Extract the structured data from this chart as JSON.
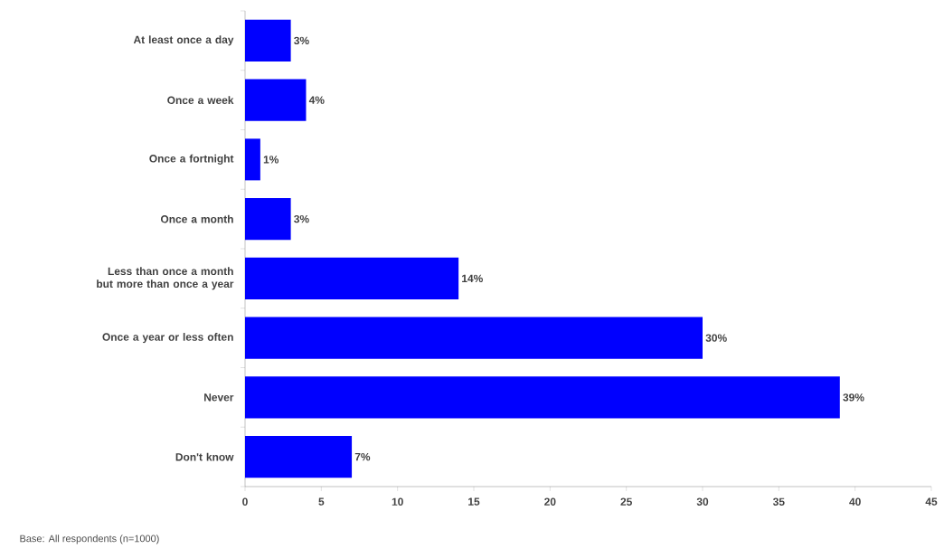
{
  "chart_data": {
    "type": "bar",
    "orientation": "horizontal",
    "categories": [
      "At least once a day",
      "Once a week",
      "Once a fortnight",
      "Once a month",
      "Less than once a month but more than once a year",
      "Once a year or less often",
      "Never",
      "Don't know"
    ],
    "values": [
      3,
      4,
      1,
      3,
      14,
      30,
      39,
      7
    ],
    "value_labels": [
      "3%",
      "4%",
      "1%",
      "3%",
      "14%",
      "30%",
      "39%",
      "7%"
    ],
    "color": "#0000ff",
    "xlim": [
      0,
      45
    ],
    "xticks": [
      0,
      5,
      10,
      15,
      20,
      25,
      30,
      35,
      40,
      45
    ],
    "annotations": [
      "Base: All respondents  (n=1000)"
    ]
  }
}
